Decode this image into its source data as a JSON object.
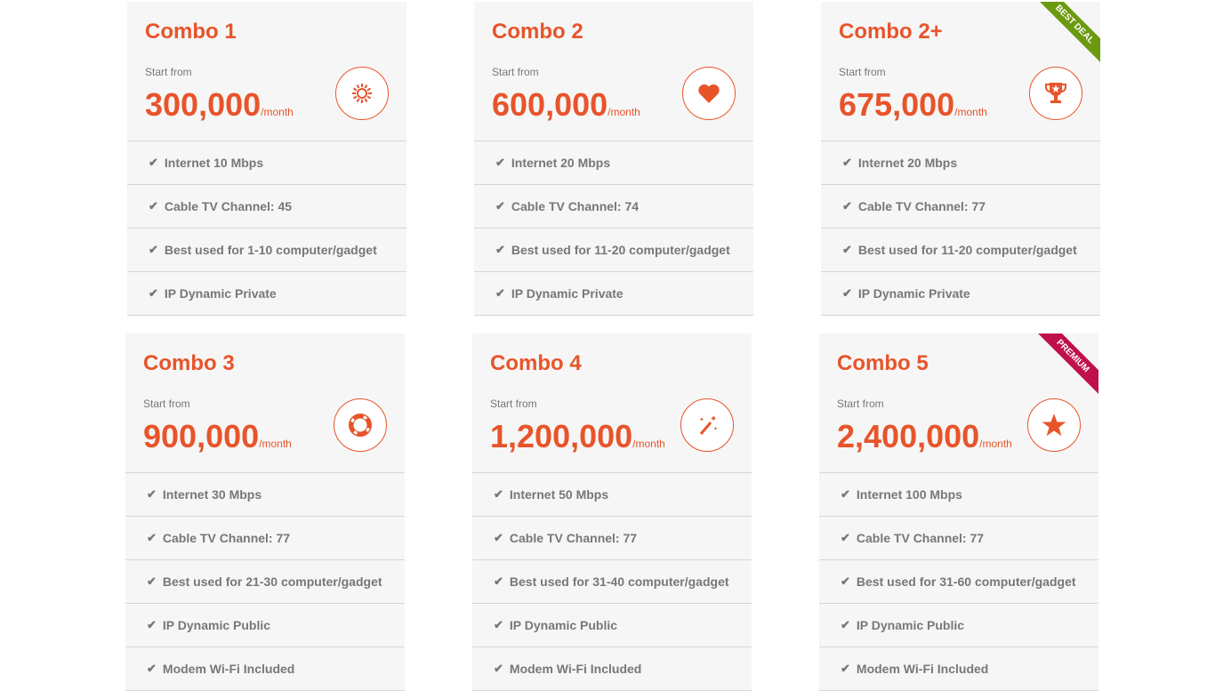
{
  "accent": "#e8542a",
  "start_label": "Start from",
  "period": "/month",
  "cards": [
    {
      "title": "Combo 1",
      "price": "300,000",
      "icon": "sun-icon",
      "features": [
        "Internet 10 Mbps",
        "Cable TV Channel: 45",
        "Best used for 1-10 computer/gadget",
        "IP Dynamic Private"
      ]
    },
    {
      "title": "Combo 2",
      "price": "600,000",
      "icon": "heart-icon",
      "features": [
        "Internet 20 Mbps",
        "Cable TV Channel: 74",
        "Best used for 11-20 computer/gadget",
        "IP Dynamic Private"
      ]
    },
    {
      "title": "Combo 2+",
      "price": "675,000",
      "icon": "trophy-icon",
      "ribbon": "BEST DEAL",
      "ribbon_color": "#6b9a10",
      "features": [
        "Internet 20 Mbps",
        "Cable TV Channel: 77",
        "Best used for 11-20 computer/gadget",
        "IP Dynamic Private"
      ]
    },
    {
      "title": "Combo 3",
      "price": "900,000",
      "icon": "lifebuoy-icon",
      "features": [
        "Internet 30 Mbps",
        "Cable TV Channel: 77",
        "Best used for 21-30 computer/gadget",
        "IP Dynamic Public",
        "Modem Wi-Fi Included"
      ]
    },
    {
      "title": "Combo 4",
      "price": "1,200,000",
      "icon": "magic-wand-icon",
      "features": [
        "Internet 50 Mbps",
        "Cable TV Channel: 77",
        "Best used for 31-40 computer/gadget",
        "IP Dynamic Public",
        "Modem Wi-Fi Included"
      ]
    },
    {
      "title": "Combo 5",
      "price": "2,400,000",
      "icon": "star-icon",
      "ribbon": "PREMIUM",
      "ribbon_color": "#c0104a",
      "features": [
        "Internet 100 Mbps",
        "Cable TV Channel: 77",
        "Best used for 31-60 computer/gadget",
        "IP Dynamic Public",
        "Modem Wi-Fi Included"
      ]
    }
  ]
}
